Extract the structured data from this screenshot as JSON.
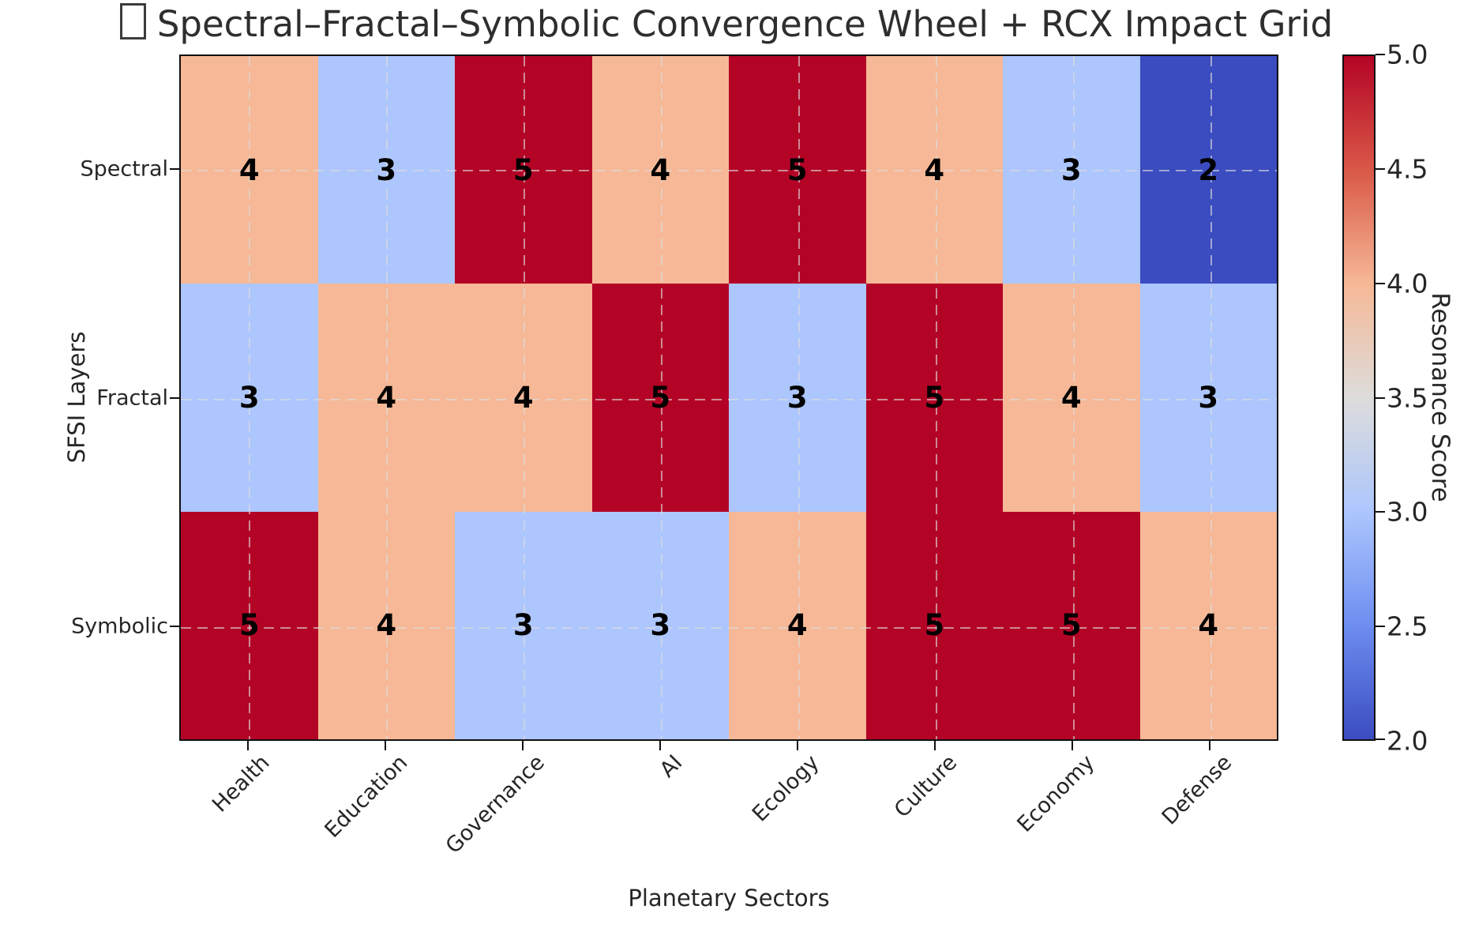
{
  "title": {
    "prefix_missing_glyph": "tofu-box",
    "text": "Spectral–Fractal–Symbolic Convergence Wheel + RCX Impact Grid"
  },
  "chart_data": {
    "type": "heatmap",
    "title": "Spectral–Fractal–Symbolic Convergence Wheel + RCX Impact Grid",
    "xlabel": "Planetary Sectors",
    "ylabel": "SFSI Layers",
    "x_categories": [
      "Health",
      "Education",
      "Governance",
      "AI",
      "Ecology",
      "Culture",
      "Economy",
      "Defense"
    ],
    "y_categories": [
      "Spectral",
      "Fractal",
      "Symbolic"
    ],
    "values": [
      [
        4,
        3,
        5,
        4,
        5,
        4,
        3,
        2
      ],
      [
        3,
        4,
        4,
        5,
        3,
        5,
        4,
        3
      ],
      [
        5,
        4,
        3,
        3,
        4,
        5,
        5,
        4
      ]
    ],
    "value_colors": {
      "2": "#3b4cc0",
      "3": "#adc6fd",
      "4": "#f6b896",
      "5": "#b40426"
    },
    "grid": {
      "style": "dashed",
      "on": true
    },
    "colorbar": {
      "label": "Resonance Score",
      "min": 2.0,
      "max": 5.0,
      "tick_labels": [
        "5.0",
        "4.5",
        "4.0",
        "3.5",
        "3.0",
        "2.5",
        "2.0"
      ],
      "gradient_top_to_bottom": [
        "#b40426",
        "#d95847",
        "#f6b896",
        "#dddcdb",
        "#adc6fd",
        "#6d8df1",
        "#3b4cc0"
      ],
      "position": "right"
    }
  }
}
